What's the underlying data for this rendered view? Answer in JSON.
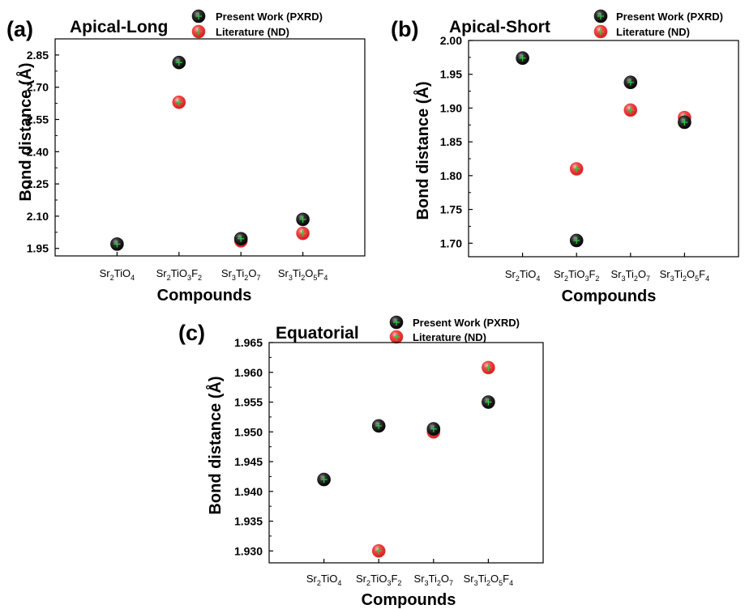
{
  "colors": {
    "present_work": "#111111",
    "literature": "#f03c3c",
    "marker_cross": "#2ecc40"
  },
  "chart_data": [
    {
      "id": "a",
      "type": "scatter",
      "panel_label": "(a)",
      "title": "Apical-Long",
      "xlabel": "Compounds",
      "ylabel": "Bond distance (Å)",
      "categories": [
        {
          "base": "Sr2TiO4",
          "parts": [
            [
              "Sr",
              ""
            ],
            [
              "2",
              "sub"
            ],
            [
              "TiO",
              ""
            ],
            [
              "4",
              "sub"
            ]
          ]
        },
        {
          "base": "Sr2TiO3F2",
          "parts": [
            [
              "Sr",
              ""
            ],
            [
              "2",
              "sub"
            ],
            [
              "TiO",
              ""
            ],
            [
              "3",
              "sub"
            ],
            [
              "F",
              ""
            ],
            [
              "2",
              "sub"
            ]
          ]
        },
        {
          "base": "Sr3Ti2O7",
          "parts": [
            [
              "Sr",
              ""
            ],
            [
              "3",
              "sub"
            ],
            [
              "Ti",
              ""
            ],
            [
              "2",
              "sub"
            ],
            [
              "O",
              ""
            ],
            [
              "7",
              "sub"
            ]
          ]
        },
        {
          "base": "Sr3Ti2O5F4",
          "parts": [
            [
              "Sr",
              ""
            ],
            [
              "3",
              "sub"
            ],
            [
              "Ti",
              ""
            ],
            [
              "2",
              "sub"
            ],
            [
              "O",
              ""
            ],
            [
              "5",
              "sub"
            ],
            [
              "F",
              ""
            ],
            [
              "4",
              "sub"
            ]
          ]
        }
      ],
      "ylim": [
        1.915,
        2.925
      ],
      "yticks": [
        "1.95",
        "2.10",
        "2.25",
        "2.40",
        "2.55",
        "2.70",
        "2.85"
      ],
      "legend_position": "top",
      "series": [
        {
          "name": "Present Work (PXRD)",
          "values": [
            1.97,
            2.815,
            1.995,
            2.085
          ]
        },
        {
          "name": "Literature (ND)",
          "values": [
            null,
            2.63,
            1.985,
            2.02
          ]
        }
      ]
    },
    {
      "id": "b",
      "type": "scatter",
      "panel_label": "(b)",
      "title": "Apical-Short",
      "xlabel": "Compounds",
      "ylabel": "Bond distance (Å)",
      "categories": [
        {
          "base": "Sr2TiO4",
          "parts": [
            [
              "Sr",
              ""
            ],
            [
              "2",
              "sub"
            ],
            [
              "TiO",
              ""
            ],
            [
              "4",
              "sub"
            ]
          ]
        },
        {
          "base": "Sr2TiO3F2",
          "parts": [
            [
              "Sr",
              ""
            ],
            [
              "2",
              "sub"
            ],
            [
              "TiO",
              ""
            ],
            [
              "3",
              "sub"
            ],
            [
              "F",
              ""
            ],
            [
              "2",
              "sub"
            ]
          ]
        },
        {
          "base": "Sr3Ti2O7",
          "parts": [
            [
              "Sr",
              ""
            ],
            [
              "3",
              "sub"
            ],
            [
              "Ti",
              ""
            ],
            [
              "2",
              "sub"
            ],
            [
              "O",
              ""
            ],
            [
              "7",
              "sub"
            ]
          ]
        },
        {
          "base": "Sr3Ti2O5F4",
          "parts": [
            [
              "Sr",
              ""
            ],
            [
              "3",
              "sub"
            ],
            [
              "Ti",
              ""
            ],
            [
              "2",
              "sub"
            ],
            [
              "O",
              ""
            ],
            [
              "5",
              "sub"
            ],
            [
              "F",
              ""
            ],
            [
              "4",
              "sub"
            ]
          ]
        }
      ],
      "ylim": [
        1.68,
        2.0
      ],
      "yticks": [
        "1.70",
        "1.75",
        "1.80",
        "1.85",
        "1.90",
        "1.95",
        "2.00"
      ],
      "legend_position": "top-right",
      "series": [
        {
          "name": "Present Work (PXRD)",
          "values": [
            1.974,
            1.704,
            1.938,
            1.879
          ]
        },
        {
          "name": "Literature (ND)",
          "values": [
            null,
            1.81,
            1.897,
            1.886
          ]
        }
      ]
    },
    {
      "id": "c",
      "type": "scatter",
      "panel_label": "(c)",
      "title": "Equatorial",
      "xlabel": "Compounds",
      "ylabel": "Bond distance (Å)",
      "categories": [
        {
          "base": "Sr2TiO4",
          "parts": [
            [
              "Sr",
              ""
            ],
            [
              "2",
              "sub"
            ],
            [
              "TiO",
              ""
            ],
            [
              "4",
              "sub"
            ]
          ]
        },
        {
          "base": "Sr2TiO3F2",
          "parts": [
            [
              "Sr",
              ""
            ],
            [
              "2",
              "sub"
            ],
            [
              "TiO",
              ""
            ],
            [
              "3",
              "sub"
            ],
            [
              "F",
              ""
            ],
            [
              "2",
              "sub"
            ]
          ]
        },
        {
          "base": "Sr3Ti2O7",
          "parts": [
            [
              "Sr",
              ""
            ],
            [
              "3",
              "sub"
            ],
            [
              "Ti",
              ""
            ],
            [
              "2",
              "sub"
            ],
            [
              "O",
              ""
            ],
            [
              "7",
              "sub"
            ]
          ]
        },
        {
          "base": "Sr3Ti2O5F4",
          "parts": [
            [
              "Sr",
              ""
            ],
            [
              "3",
              "sub"
            ],
            [
              "Ti",
              ""
            ],
            [
              "2",
              "sub"
            ],
            [
              "O",
              ""
            ],
            [
              "5",
              "sub"
            ],
            [
              "F",
              ""
            ],
            [
              "4",
              "sub"
            ]
          ]
        }
      ],
      "ylim": [
        1.928,
        1.965
      ],
      "yticks": [
        "1.930",
        "1.935",
        "1.940",
        "1.945",
        "1.950",
        "1.955",
        "1.960",
        "1.965"
      ],
      "legend_position": "top",
      "series": [
        {
          "name": "Present Work (PXRD)",
          "values": [
            1.942,
            1.951,
            1.9505,
            1.955
          ]
        },
        {
          "name": "Literature (ND)",
          "values": [
            null,
            1.93,
            1.95,
            1.9608
          ]
        }
      ]
    }
  ]
}
